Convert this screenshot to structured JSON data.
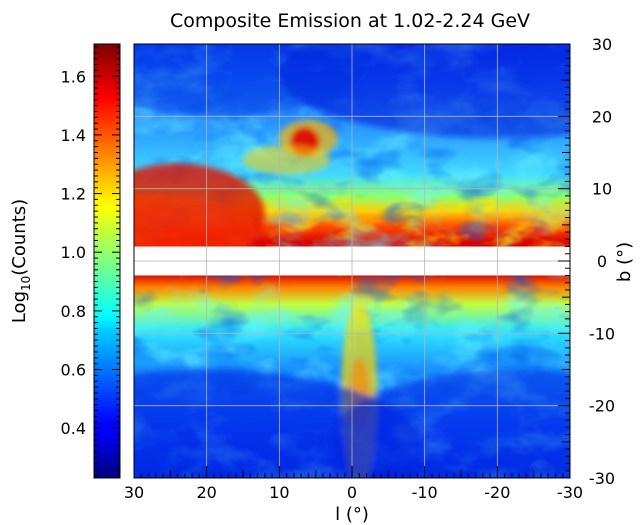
{
  "chart_data": {
    "type": "heatmap",
    "title": "Composite Emission at 1.02-2.24 GeV",
    "xlabel": "l (°)",
    "ylabel": "b (°)",
    "colorbar_label": "Log10(Counts)",
    "colorbar_label_parts": {
      "base": "Log",
      "sub": "10",
      "rest": "(Counts)"
    },
    "xlim": [
      30,
      -30
    ],
    "ylim": [
      -30,
      30
    ],
    "colorbar_range": [
      0.23,
      1.71
    ],
    "x_ticks": [
      30,
      20,
      10,
      0,
      -10,
      -20,
      -30
    ],
    "x_tick_labels": [
      "30",
      "20",
      "10",
      "0",
      "-10",
      "-20",
      "-30"
    ],
    "y_ticks": [
      30,
      20,
      10,
      0,
      -10,
      -20,
      -30
    ],
    "y_tick_labels": [
      "30",
      "20",
      "10",
      "0",
      "-10",
      "-20",
      "-30"
    ],
    "colorbar_ticks": [
      1.6,
      1.4,
      1.2,
      1.0,
      0.8,
      0.6,
      0.4
    ],
    "colorbar_tick_labels": [
      "1.6",
      "1.4",
      "1.2",
      "1.0",
      "0.8",
      "0.6",
      "0.4"
    ],
    "masked_band_b": [
      -2,
      2
    ],
    "grid": true,
    "colormap": "jet",
    "yaxis_side": "right",
    "colorbar_side": "left"
  },
  "colors": {
    "mask": "#ffffff",
    "grid": "#b4b4b4",
    "low": "#00007f",
    "high": "#7f0000"
  }
}
